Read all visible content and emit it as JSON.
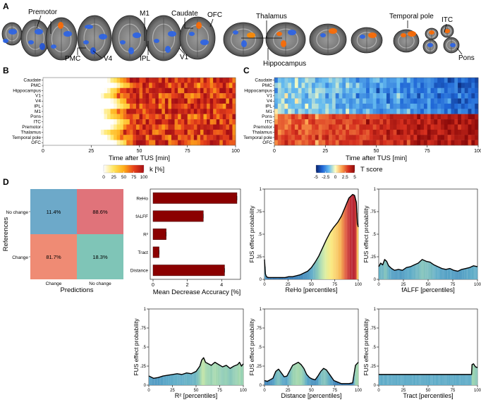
{
  "panel_labels": {
    "a": "A",
    "b": "B",
    "c": "C",
    "d": "D"
  },
  "brain_labels": [
    "Premotor",
    "M1",
    "Caudate",
    "OFC",
    "Thalamus",
    "Temporal pole",
    "ITC",
    "PMC",
    "V4",
    "IPL",
    "V1",
    "Hippocampus",
    "Pons"
  ],
  "chart_data": [
    {
      "id": "B",
      "type": "heatmap",
      "xlabel": "Time after TUS [min]",
      "xticks": [
        0,
        25,
        50,
        75,
        100
      ],
      "xlim": [
        0,
        100
      ],
      "rows": [
        "Caudate",
        "PMC",
        "Hippocampus",
        "V1",
        "V4",
        "IPL",
        "M1",
        "Pons",
        "ITC",
        "Premotor",
        "Thalamus",
        "Temporal pole",
        "OFC"
      ],
      "colorbar": {
        "label": "k [%]",
        "ticks": [
          0,
          25,
          50,
          75,
          100
        ],
        "colors": [
          "#ffffff",
          "#ffe45c",
          "#ffae1a",
          "#e8421b",
          "#a50f15"
        ]
      }
    },
    {
      "id": "C",
      "type": "heatmap",
      "xlabel": "Time after TUS [min]",
      "xticks": [
        0,
        25,
        50,
        75,
        100
      ],
      "xlim": [
        0,
        100
      ],
      "rows": [
        "Caudate",
        "PMC",
        "Hippocampus",
        "V1",
        "V4",
        "IPL",
        "M1",
        "Pons",
        "ITC",
        "Premotor",
        "Thalamus",
        "Temporal pole",
        "OFC"
      ],
      "colorbar": {
        "label": "T score",
        "ticks": [
          -5,
          -2.5,
          0,
          2.5,
          5
        ],
        "colors": [
          "#08216b",
          "#1f66d6",
          "#66bcf0",
          "#ffffbf",
          "#fca04c",
          "#d7301f",
          "#8c0a0a"
        ]
      }
    },
    {
      "id": "D-confusion",
      "type": "table",
      "ylabel": "References",
      "xlabel": "Predictions",
      "row_labels": [
        "No change",
        "Change"
      ],
      "col_labels": [
        "Change",
        "No change"
      ],
      "cells": [
        [
          "11.4%",
          "88.6%"
        ],
        [
          "81.7%",
          "18.3%"
        ]
      ],
      "colors": [
        [
          "#6da9c9",
          "#e0737a"
        ],
        [
          "#ef8b74",
          "#7fc5b7"
        ]
      ]
    },
    {
      "id": "D-importance",
      "type": "bar",
      "orientation": "horizontal",
      "categories": [
        "ReHo",
        "fALFF",
        "R²",
        "Tract",
        "Distance"
      ],
      "values": [
        4.9,
        3.0,
        0.9,
        0.5,
        4.2
      ],
      "xlabel": "Mean Decrease Accuracy [%]",
      "xticks": [
        0,
        2,
        4
      ],
      "xlim": [
        0,
        5.1
      ],
      "color": "#8b0000"
    },
    {
      "id": "D-reho",
      "type": "area",
      "xlabel": "ReHo [percentiles]",
      "ylabel": "FUS effect probability",
      "xticks": [
        0,
        25,
        50,
        75,
        100
      ],
      "yticks": [
        0,
        0.25,
        0.5,
        0.75,
        1
      ],
      "yticklabels": [
        "0",
        ".25",
        ".5",
        ".75",
        "1"
      ],
      "ylim": [
        0,
        1
      ],
      "x": [
        0,
        1,
        2,
        4,
        6,
        8,
        10,
        14,
        18,
        22,
        26,
        30,
        34,
        38,
        42,
        46,
        50,
        54,
        58,
        62,
        66,
        70,
        74,
        78,
        82,
        86,
        88,
        90,
        92,
        94,
        96,
        98,
        99,
        100
      ],
      "y": [
        0.22,
        0.06,
        0.03,
        0.02,
        0.02,
        0.02,
        0.02,
        0.02,
        0.02,
        0.02,
        0.03,
        0.03,
        0.04,
        0.05,
        0.07,
        0.09,
        0.13,
        0.19,
        0.26,
        0.35,
        0.44,
        0.52,
        0.58,
        0.63,
        0.7,
        0.8,
        0.85,
        0.9,
        0.92,
        0.94,
        0.93,
        0.85,
        0.62,
        0.58
      ]
    },
    {
      "id": "D-falff",
      "type": "area",
      "xlabel": "fALFF [percentiles]",
      "ylabel": "FUS effect probability",
      "xticks": [
        0,
        25,
        50,
        75,
        100
      ],
      "yticks": [
        0,
        0.25,
        0.5,
        0.75,
        1
      ],
      "yticklabels": [
        "0",
        ".25",
        ".5",
        ".75",
        "1"
      ],
      "ylim": [
        0,
        1
      ],
      "x": [
        0,
        2,
        4,
        6,
        8,
        10,
        13,
        16,
        20,
        24,
        28,
        32,
        36,
        40,
        44,
        48,
        52,
        56,
        60,
        64,
        68,
        72,
        76,
        80,
        84,
        88,
        92,
        96,
        100
      ],
      "y": [
        0.14,
        0.18,
        0.16,
        0.22,
        0.2,
        0.15,
        0.12,
        0.1,
        0.11,
        0.1,
        0.13,
        0.14,
        0.16,
        0.18,
        0.22,
        0.2,
        0.19,
        0.16,
        0.14,
        0.12,
        0.11,
        0.12,
        0.1,
        0.09,
        0.11,
        0.12,
        0.13,
        0.15,
        0.14
      ]
    },
    {
      "id": "D-r2",
      "type": "area",
      "xlabel": "R² [percentiles]",
      "ylabel": "FUS effect probability",
      "xticks": [
        0,
        25,
        50,
        75,
        100
      ],
      "yticks": [
        0,
        0.25,
        0.5,
        0.75,
        1
      ],
      "yticklabels": [
        "0",
        ".25",
        ".5",
        ".75",
        "1"
      ],
      "ylim": [
        0,
        1
      ],
      "x": [
        0,
        5,
        10,
        15,
        20,
        25,
        30,
        35,
        40,
        45,
        50,
        54,
        56,
        58,
        60,
        63,
        66,
        70,
        74,
        78,
        82,
        86,
        90,
        94,
        96,
        98,
        100
      ],
      "y": [
        0.12,
        0.09,
        0.1,
        0.12,
        0.13,
        0.14,
        0.15,
        0.14,
        0.16,
        0.15,
        0.18,
        0.25,
        0.33,
        0.36,
        0.3,
        0.28,
        0.26,
        0.3,
        0.27,
        0.24,
        0.26,
        0.22,
        0.25,
        0.27,
        0.3,
        0.25,
        0.28
      ]
    },
    {
      "id": "D-distance",
      "type": "area",
      "xlabel": "Distance [percentiles]",
      "ylabel": "FUS effect probability",
      "xticks": [
        0,
        25,
        50,
        75,
        100
      ],
      "yticks": [
        0,
        0.25,
        0.5,
        0.75,
        1
      ],
      "yticklabels": [
        "0",
        ".25",
        ".5",
        ".75",
        "1"
      ],
      "ylim": [
        0,
        1
      ],
      "x": [
        0,
        3,
        6,
        9,
        12,
        15,
        18,
        21,
        24,
        27,
        30,
        33,
        36,
        39,
        42,
        45,
        48,
        51,
        54,
        57,
        60,
        63,
        66,
        70,
        74,
        78,
        82,
        86,
        90,
        94,
        97,
        100
      ],
      "y": [
        0.06,
        0.05,
        0.07,
        0.09,
        0.18,
        0.21,
        0.16,
        0.11,
        0.12,
        0.19,
        0.26,
        0.28,
        0.3,
        0.27,
        0.22,
        0.14,
        0.1,
        0.08,
        0.07,
        0.12,
        0.18,
        0.22,
        0.2,
        0.13,
        0.06,
        0.04,
        0.02,
        0.02,
        0.02,
        0.03,
        0.26,
        0.3
      ]
    },
    {
      "id": "D-tract",
      "type": "area",
      "xlabel": "Tract [percentiles]",
      "ylabel": "FUS effect probability",
      "xticks": [
        0,
        25,
        50,
        75,
        100
      ],
      "yticks": [
        0,
        0.25,
        0.5,
        0.75,
        1
      ],
      "yticklabels": [
        "0",
        ".25",
        ".5",
        ".75",
        "1"
      ],
      "ylim": [
        0,
        1
      ],
      "x": [
        0,
        10,
        20,
        30,
        40,
        50,
        60,
        70,
        80,
        90,
        94,
        94.5,
        96,
        98,
        100
      ],
      "y": [
        0.14,
        0.14,
        0.14,
        0.14,
        0.14,
        0.14,
        0.14,
        0.14,
        0.14,
        0.14,
        0.14,
        0.27,
        0.28,
        0.24,
        0.23
      ]
    }
  ]
}
